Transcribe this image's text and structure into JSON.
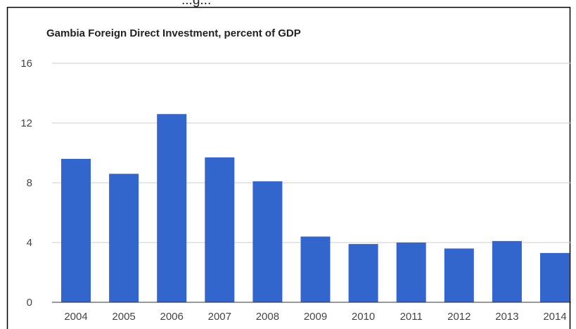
{
  "clipped_header_text": "...g...",
  "chart_data": {
    "type": "bar",
    "title": "Gambia Foreign Direct Investment, percent of GDP",
    "xlabel": "",
    "ylabel": "",
    "categories": [
      "2004",
      "2005",
      "2006",
      "2007",
      "2008",
      "2009",
      "2010",
      "2011",
      "2012",
      "2013",
      "2014"
    ],
    "values": [
      9.6,
      8.6,
      12.6,
      9.7,
      8.1,
      4.4,
      3.9,
      4.0,
      3.6,
      4.1,
      3.3
    ],
    "ylim": [
      0,
      16
    ],
    "yticks": [
      "0",
      "4",
      "8",
      "12",
      "16"
    ],
    "grid": true,
    "legend": "none",
    "colors": {
      "bar": "#3366cc",
      "gridline": "#cccccc",
      "baseline": "#333333",
      "frame": "#000000"
    }
  }
}
